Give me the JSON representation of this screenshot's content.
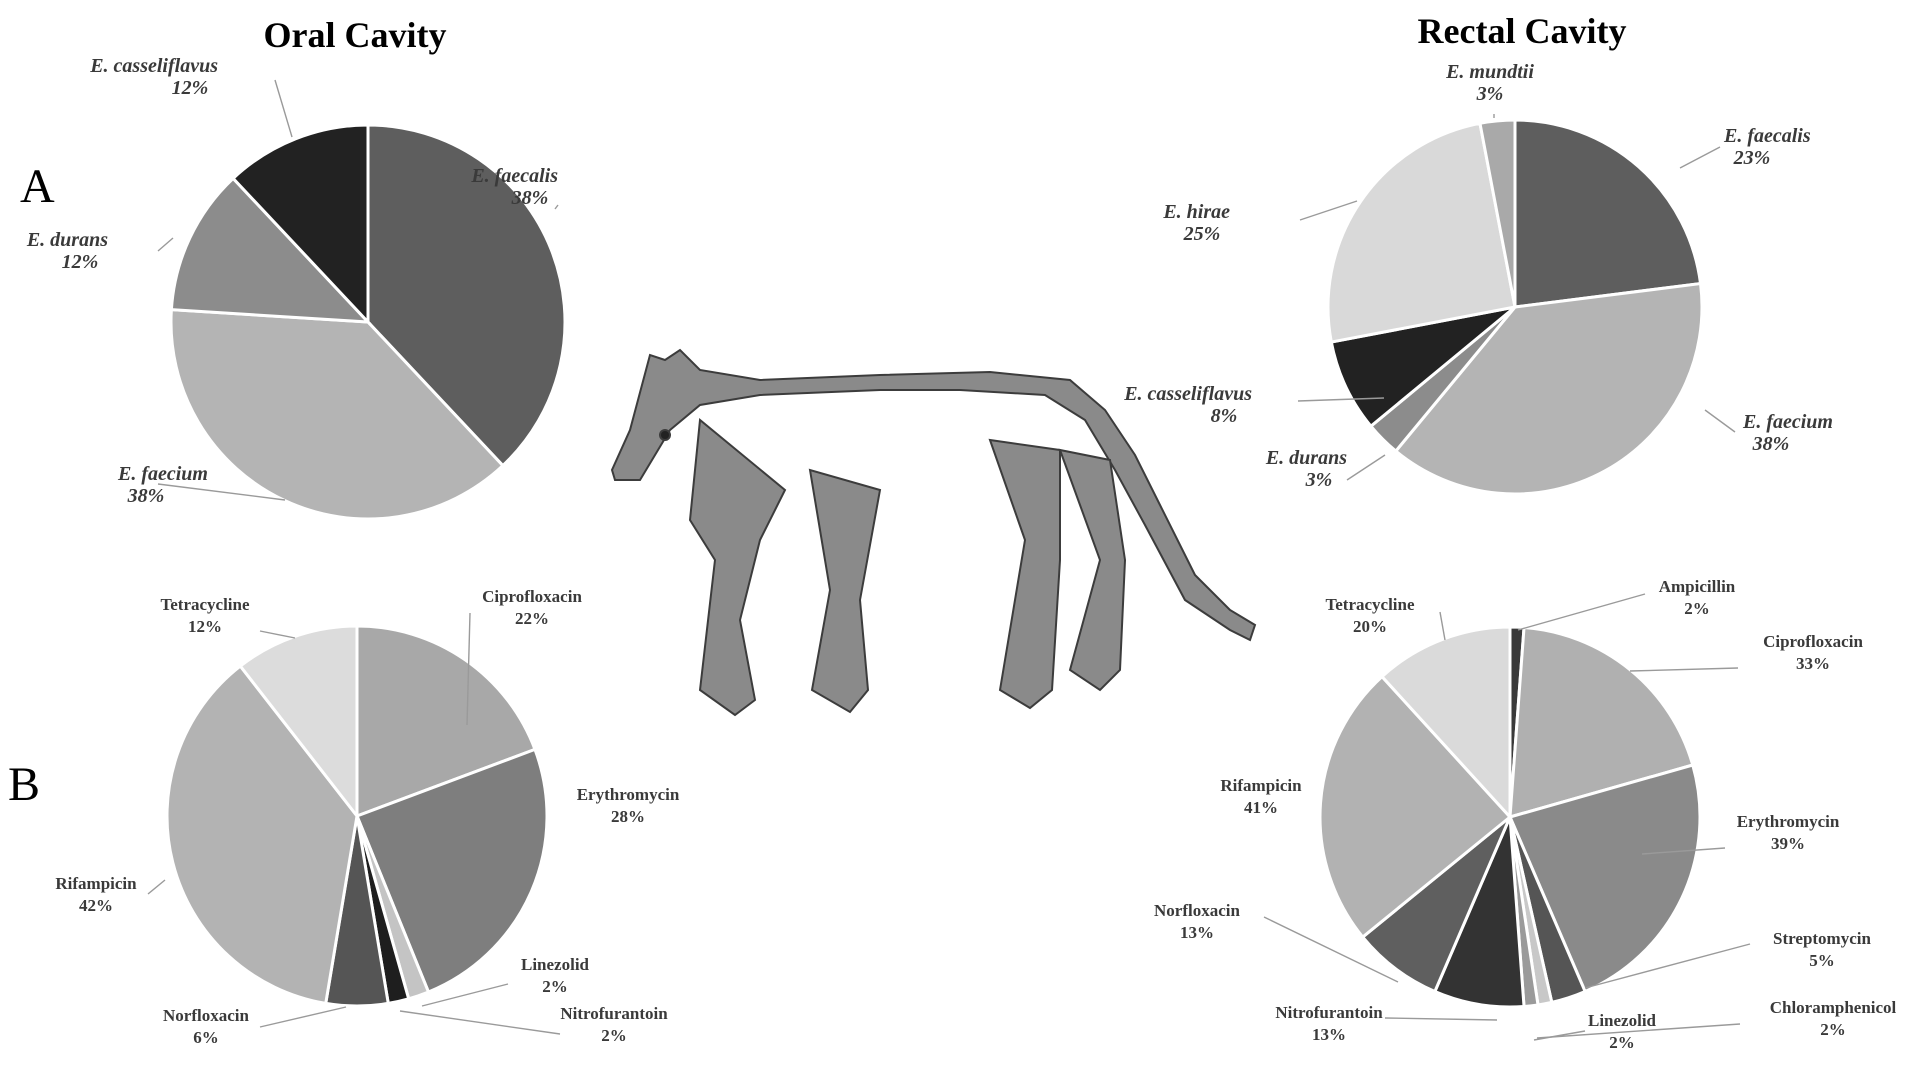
{
  "titles": {
    "oral": "Oral Cavity",
    "rectal": "Rectal Cavity"
  },
  "panels": {
    "a": "A",
    "b": "B"
  },
  "chart_data": [
    {
      "id": "oral-species",
      "type": "pie",
      "slices": [
        {
          "name": "E. faecalis",
          "pct": "38%",
          "value": 38,
          "color": "#5e5e5e"
        },
        {
          "name": "E. faecium",
          "pct": "38%",
          "value": 38,
          "color": "#b4b4b4"
        },
        {
          "name": "E. durans",
          "pct": "12%",
          "value": 12,
          "color": "#8c8c8c"
        },
        {
          "name": "E. casseliflavus",
          "pct": "12%",
          "value": 12,
          "color": "#222222"
        }
      ]
    },
    {
      "id": "rectal-species",
      "type": "pie",
      "slices": [
        {
          "name": "E. faecalis",
          "pct": "23%",
          "value": 23,
          "color": "#5e5e5e"
        },
        {
          "name": "E. faecium",
          "pct": "38%",
          "value": 38,
          "color": "#b4b4b4"
        },
        {
          "name": "E. durans",
          "pct": "3%",
          "value": 3,
          "color": "#8c8c8c"
        },
        {
          "name": "E. casseliflavus",
          "pct": "8%",
          "value": 8,
          "color": "#222222"
        },
        {
          "name": "E. hirae",
          "pct": "25%",
          "value": 25,
          "color": "#d9d9d9"
        },
        {
          "name": "E. mundtii",
          "pct": "3%",
          "value": 3,
          "color": "#a9a9a9"
        }
      ]
    },
    {
      "id": "oral-antibiotics",
      "type": "pie",
      "slices": [
        {
          "name": "Ciprofloxacin",
          "pct": "22%",
          "value": 22,
          "color": "#a8a8a8"
        },
        {
          "name": "Erythromycin",
          "pct": "28%",
          "value": 28,
          "color": "#7e7e7e"
        },
        {
          "name": "Linezolid",
          "pct": "2%",
          "value": 2,
          "color": "#c4c4c4"
        },
        {
          "name": "Nitrofurantoin",
          "pct": "2%",
          "value": 2,
          "color": "#1e1e1e"
        },
        {
          "name": "Norfloxacin",
          "pct": "6%",
          "value": 6,
          "color": "#555555"
        },
        {
          "name": "Rifampicin",
          "pct": "42%",
          "value": 42,
          "color": "#b3b3b3"
        },
        {
          "name": "Tetracycline",
          "pct": "12%",
          "value": 12,
          "color": "#dcdcdc"
        }
      ]
    },
    {
      "id": "rectal-antibiotics",
      "type": "pie",
      "slices": [
        {
          "name": "Ampicillin",
          "pct": "2%",
          "value": 2,
          "color": "#3a3a3a"
        },
        {
          "name": "Ciprofloxacin",
          "pct": "33%",
          "value": 33,
          "color": "#b0b0b0"
        },
        {
          "name": "Erythromycin",
          "pct": "39%",
          "value": 39,
          "color": "#8a8a8a"
        },
        {
          "name": "Streptomycin",
          "pct": "5%",
          "value": 5,
          "color": "#555555"
        },
        {
          "name": "Chloramphenicol",
          "pct": "2%",
          "value": 2,
          "color": "#c8c8c8"
        },
        {
          "name": "Linezolid",
          "pct": "2%",
          "value": 2,
          "color": "#9a9a9a"
        },
        {
          "name": "Nitrofurantoin",
          "pct": "13%",
          "value": 13,
          "color": "#333333"
        },
        {
          "name": "Norfloxacin",
          "pct": "13%",
          "value": 13,
          "color": "#5f5f5f"
        },
        {
          "name": "Rifampicin",
          "pct": "41%",
          "value": 41,
          "color": "#b2b2b2"
        },
        {
          "name": "Tetracycline",
          "pct": "20%",
          "value": 20,
          "color": "#dadada"
        }
      ]
    }
  ]
}
